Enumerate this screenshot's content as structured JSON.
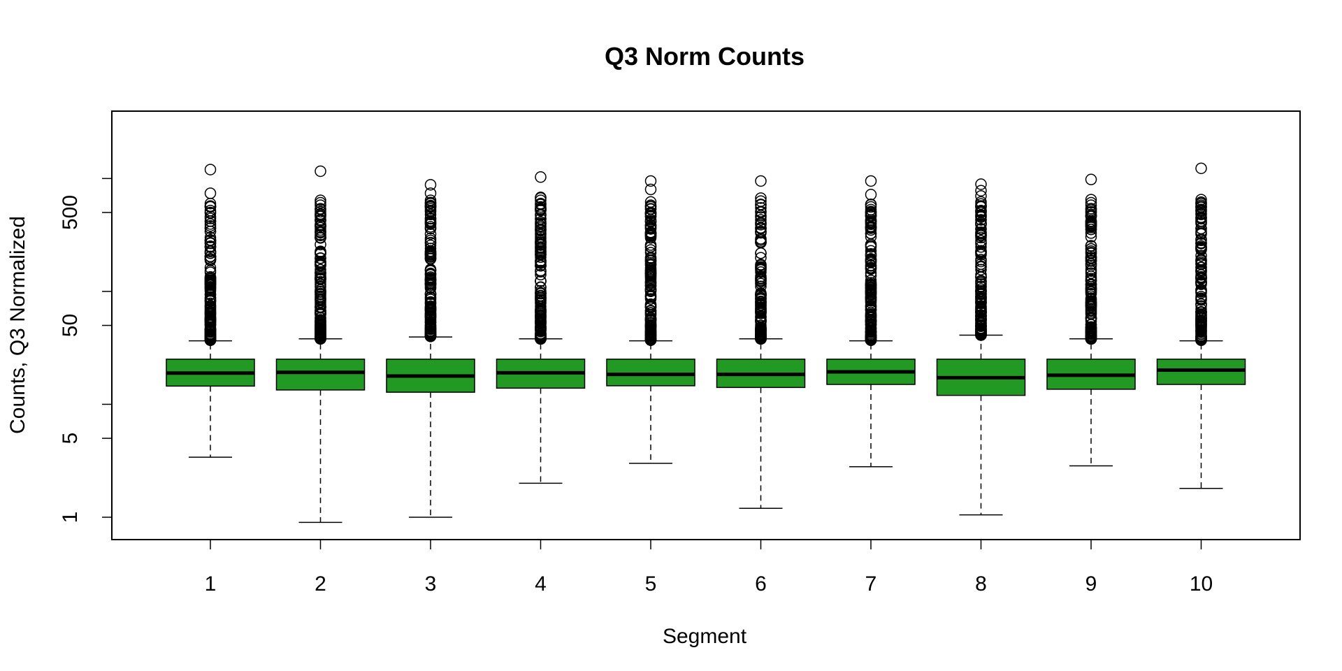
{
  "chart_data": {
    "type": "boxplot",
    "title": "Q3 Norm Counts",
    "xlabel": "Segment",
    "ylabel": "Counts, Q3 Normalized",
    "y_scale": "log",
    "ylim": [
      0.8,
      3500
    ],
    "y_ticks": [
      1,
      5,
      50,
      500
    ],
    "y_minor_ticks": [
      10,
      100,
      1000
    ],
    "categories": [
      "1",
      "2",
      "3",
      "4",
      "5",
      "6",
      "7",
      "8",
      "9",
      "10"
    ],
    "box_color": "#229922",
    "series": [
      {
        "category": "1",
        "whisker_low": 3.4,
        "q1": 14.5,
        "median": 18.9,
        "q3": 25.1,
        "whisker_high": 36.5,
        "outlier_range": [
          37,
          580
        ],
        "outliers": [
          1200,
          740,
          600,
          560,
          520,
          500,
          460,
          420,
          380,
          340
        ]
      },
      {
        "category": "2",
        "whisker_low": 0.9,
        "q1": 13.4,
        "median": 19.2,
        "q3": 25.1,
        "whisker_high": 38.0,
        "outlier_range": [
          38,
          560
        ],
        "outliers": [
          1160,
          640,
          610,
          580,
          540,
          460,
          430,
          380,
          350
        ]
      },
      {
        "category": "3",
        "whisker_low": 1.0,
        "q1": 12.8,
        "median": 17.8,
        "q3": 25.1,
        "whisker_high": 39.5,
        "outlier_range": [
          40,
          640
        ],
        "outliers": [
          880,
          740,
          640,
          600,
          560,
          520,
          480,
          440,
          400,
          360
        ]
      },
      {
        "category": "4",
        "whisker_low": 2.0,
        "q1": 13.9,
        "median": 19.0,
        "q3": 25.1,
        "whisker_high": 38.0,
        "outlier_range": [
          38,
          680
        ],
        "outliers": [
          1030,
          680,
          640,
          600,
          560,
          520,
          480,
          440,
          400
        ]
      },
      {
        "category": "5",
        "whisker_low": 3.0,
        "q1": 14.6,
        "median": 18.4,
        "q3": 25.1,
        "whisker_high": 36.5,
        "outlier_range": [
          37,
          600
        ],
        "outliers": [
          950,
          800,
          620,
          580,
          540,
          500,
          460,
          420,
          380
        ]
      },
      {
        "category": "6",
        "whisker_low": 1.2,
        "q1": 14.1,
        "median": 18.4,
        "q3": 25.1,
        "whisker_high": 38.0,
        "outlier_range": [
          38,
          670
        ],
        "outliers": [
          950,
          670,
          630,
          590,
          550,
          510,
          470,
          430,
          390
        ]
      },
      {
        "category": "7",
        "whisker_low": 2.8,
        "q1": 15.0,
        "median": 19.4,
        "q3": 25.1,
        "whisker_high": 36.5,
        "outlier_range": [
          37,
          600
        ],
        "outliers": [
          950,
          720,
          590,
          560,
          530,
          470,
          430,
          400,
          370
        ]
      },
      {
        "category": "8",
        "whisker_low": 1.05,
        "q1": 12.0,
        "median": 17.2,
        "q3": 25.1,
        "whisker_high": 41.0,
        "outlier_range": [
          41,
          720
        ],
        "outliers": [
          890,
          780,
          700,
          620,
          560,
          520,
          470,
          430,
          390
        ]
      },
      {
        "category": "9",
        "whisker_low": 2.85,
        "q1": 13.6,
        "median": 18.1,
        "q3": 25.1,
        "whisker_high": 38.0,
        "outlier_range": [
          38,
          650
        ],
        "outliers": [
          980,
          650,
          610,
          580,
          540,
          500,
          460,
          420,
          380
        ]
      },
      {
        "category": "10",
        "whisker_low": 1.8,
        "q1": 15.0,
        "median": 20.1,
        "q3": 25.1,
        "whisker_high": 36.5,
        "outlier_range": [
          37,
          620
        ],
        "outliers": [
          1230,
          650,
          600,
          560,
          520,
          480,
          440,
          400,
          360
        ]
      }
    ]
  }
}
